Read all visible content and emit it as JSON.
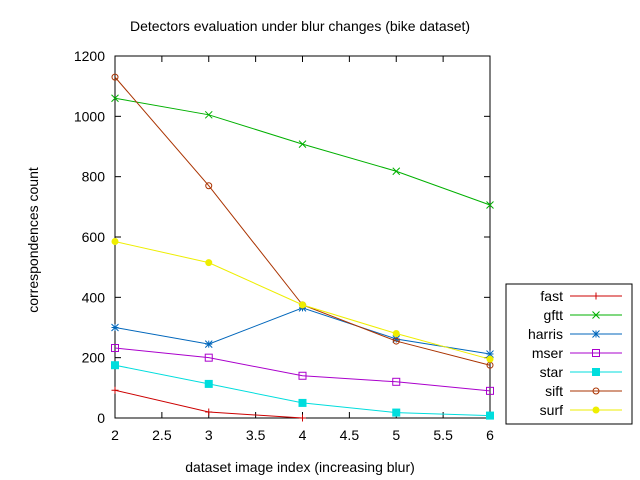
{
  "chart_data": {
    "type": "line",
    "title": "Detectors evaluation under blur changes (bike dataset)",
    "xlabel": "dataset image index (increasing blur)",
    "ylabel": "correspondences count",
    "xlim": [
      2,
      6
    ],
    "ylim": [
      0,
      1200
    ],
    "x_ticks": [
      2,
      2.5,
      3,
      3.5,
      4,
      4.5,
      5,
      5.5,
      6
    ],
    "x_tick_labels": [
      "2",
      "2.5",
      "3",
      "3.5",
      "4",
      "4.5",
      "5",
      "5.5",
      "6"
    ],
    "y_ticks": [
      0,
      200,
      400,
      600,
      800,
      1000,
      1200
    ],
    "y_tick_labels": [
      "0",
      "200",
      "400",
      "600",
      "800",
      "1000",
      "1200"
    ],
    "grid": false,
    "legend_position": "outside-bottom-right",
    "series": [
      {
        "name": "fast",
        "color": "#cc0000",
        "marker": "plus",
        "x": [
          2,
          3,
          4
        ],
        "values": [
          92,
          20,
          0
        ]
      },
      {
        "name": "gftt",
        "color": "#00b000",
        "marker": "cross",
        "x": [
          2,
          3,
          4,
          5,
          6
        ],
        "values": [
          1060,
          1005,
          908,
          818,
          706
        ]
      },
      {
        "name": "harris",
        "color": "#0066bb",
        "marker": "star",
        "x": [
          2,
          3,
          4,
          5,
          6
        ],
        "values": [
          300,
          245,
          365,
          262,
          212
        ]
      },
      {
        "name": "mser",
        "color": "#aa00cc",
        "marker": "square-open",
        "x": [
          2,
          3,
          4,
          5,
          6
        ],
        "values": [
          232,
          200,
          140,
          120,
          90
        ]
      },
      {
        "name": "star",
        "color": "#00dddd",
        "marker": "square-filled",
        "x": [
          2,
          3,
          4,
          5,
          6
        ],
        "values": [
          175,
          113,
          50,
          18,
          8
        ]
      },
      {
        "name": "sift",
        "color": "#aa3300",
        "marker": "circle-open",
        "x": [
          2,
          3,
          4,
          5,
          6
        ],
        "values": [
          1130,
          770,
          375,
          255,
          175
        ]
      },
      {
        "name": "surf",
        "color": "#eeee00",
        "marker": "circle-filled",
        "x": [
          2,
          3,
          4,
          5,
          6
        ],
        "values": [
          585,
          515,
          375,
          280,
          195
        ]
      }
    ]
  }
}
